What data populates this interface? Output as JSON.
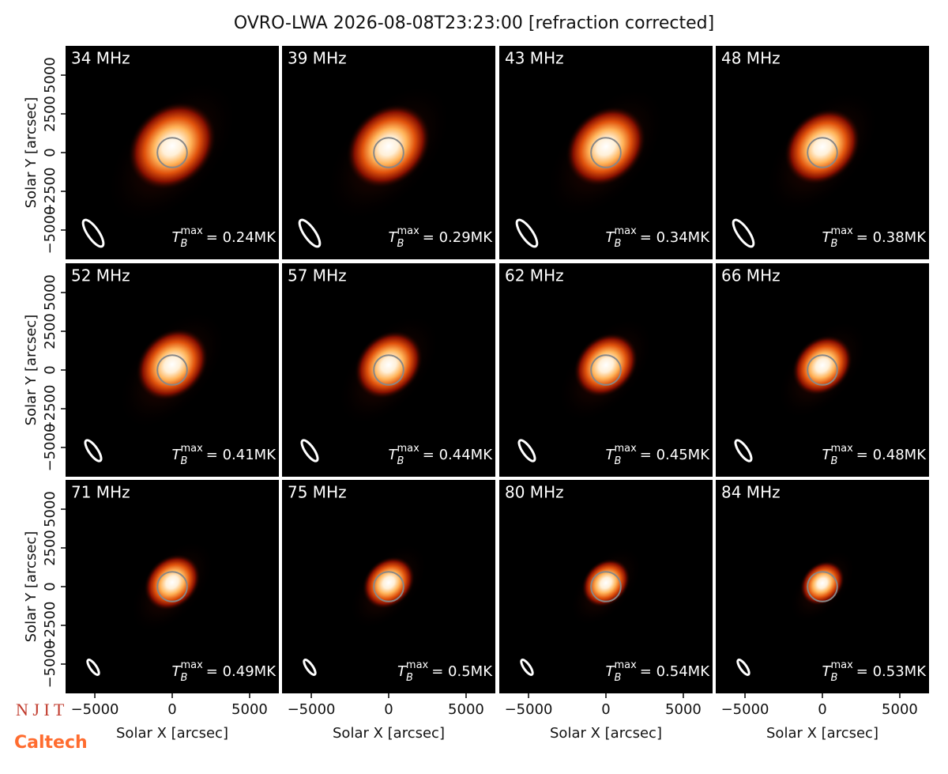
{
  "title": "OVRO-LWA 2026-08-08T23:23:00 [refraction corrected]",
  "logos": [
    "N J I T",
    "Caltech"
  ],
  "chart_data": [
    {
      "type": "image",
      "title": "34 MHz",
      "annotation": {
        "symbol": "T",
        "sub": "B",
        "sup": "max",
        "text": "= 0.24MK"
      },
      "xlim": [
        -6890,
        6890
      ],
      "ylim": [
        -6890,
        6890
      ],
      "ylabel": "Solar Y [arcsec]",
      "yticks": [
        {
          "value": -5000,
          "label": "−5000"
        },
        {
          "value": -2500,
          "label": "−2500"
        },
        0,
        2500,
        5000
      ]
    },
    {
      "type": "image",
      "title": "39 MHz",
      "annotation": {
        "symbol": "T",
        "sub": "B",
        "sup": "max",
        "text": "= 0.29MK"
      },
      "xlim": [
        -6890,
        6890
      ],
      "ylim": [
        -6890,
        6890
      ]
    },
    {
      "type": "image",
      "title": "43 MHz",
      "annotation": {
        "symbol": "T",
        "sub": "B",
        "sup": "max",
        "text": "= 0.34MK"
      },
      "xlim": [
        -6890,
        6890
      ],
      "ylim": [
        -6890,
        6890
      ]
    },
    {
      "type": "image",
      "title": "48 MHz",
      "annotation": {
        "symbol": "T",
        "sub": "B",
        "sup": "max",
        "text": "= 0.38MK"
      },
      "xlim": [
        -6890,
        6890
      ],
      "ylim": [
        -6890,
        6890
      ]
    },
    {
      "type": "image",
      "title": "52 MHz",
      "annotation": {
        "symbol": "T",
        "sub": "B",
        "sup": "max",
        "text": "= 0.41MK"
      },
      "xlim": [
        -6890,
        6890
      ],
      "ylim": [
        -6890,
        6890
      ],
      "ylabel": "Solar Y [arcsec]",
      "yticks": [
        {
          "value": -5000,
          "label": "−5000"
        },
        {
          "value": -2500,
          "label": "−2500"
        },
        0,
        2500,
        5000
      ]
    },
    {
      "type": "image",
      "title": "57 MHz",
      "annotation": {
        "symbol": "T",
        "sub": "B",
        "sup": "max",
        "text": "= 0.44MK"
      },
      "xlim": [
        -6890,
        6890
      ],
      "ylim": [
        -6890,
        6890
      ]
    },
    {
      "type": "image",
      "title": "62 MHz",
      "annotation": {
        "symbol": "T",
        "sub": "B",
        "sup": "max",
        "text": "= 0.45MK"
      },
      "xlim": [
        -6890,
        6890
      ],
      "ylim": [
        -6890,
        6890
      ]
    },
    {
      "type": "image",
      "title": "66 MHz",
      "annotation": {
        "symbol": "T",
        "sub": "B",
        "sup": "max",
        "text": "= 0.48MK"
      },
      "xlim": [
        -6890,
        6890
      ],
      "ylim": [
        -6890,
        6890
      ]
    },
    {
      "type": "image",
      "title": "71 MHz",
      "annotation": {
        "symbol": "T",
        "sub": "B",
        "sup": "max",
        "text": "= 0.49MK"
      },
      "xlim": [
        -6890,
        6890
      ],
      "ylim": [
        -6890,
        6890
      ],
      "ylabel": "Solar Y [arcsec]",
      "yticks": [
        {
          "value": -5000,
          "label": "−5000"
        },
        {
          "value": -2500,
          "label": "−2500"
        },
        0,
        2500,
        5000
      ],
      "xlabel": "Solar X [arcsec]",
      "xticks": [
        {
          "value": -5000,
          "label": "−5000"
        },
        0,
        5000
      ]
    },
    {
      "type": "image",
      "title": "75 MHz",
      "annotation": {
        "symbol": "T",
        "sub": "B",
        "sup": "max",
        "text": "= 0.5MK"
      },
      "xlim": [
        -6890,
        6890
      ],
      "ylim": [
        -6890,
        6890
      ],
      "xlabel": "Solar X [arcsec]",
      "xticks": [
        {
          "value": -5000,
          "label": "−5000"
        },
        0,
        5000
      ]
    },
    {
      "type": "image",
      "title": "80 MHz",
      "annotation": {
        "symbol": "T",
        "sub": "B",
        "sup": "max",
        "text": "= 0.54MK"
      },
      "xlim": [
        -6890,
        6890
      ],
      "ylim": [
        -6890,
        6890
      ],
      "xlabel": "Solar X [arcsec]",
      "xticks": [
        {
          "value": -5000,
          "label": "−5000"
        },
        0,
        5000
      ]
    },
    {
      "type": "image",
      "title": "84 MHz",
      "annotation": {
        "symbol": "T",
        "sub": "B",
        "sup": "max",
        "text": "= 0.53MK"
      },
      "xlim": [
        -6890,
        6890
      ],
      "ylim": [
        -6890,
        6890
      ],
      "xlabel": "Solar X [arcsec]",
      "xticks": [
        {
          "value": -5000,
          "label": "−5000"
        },
        0,
        5000
      ]
    }
  ]
}
